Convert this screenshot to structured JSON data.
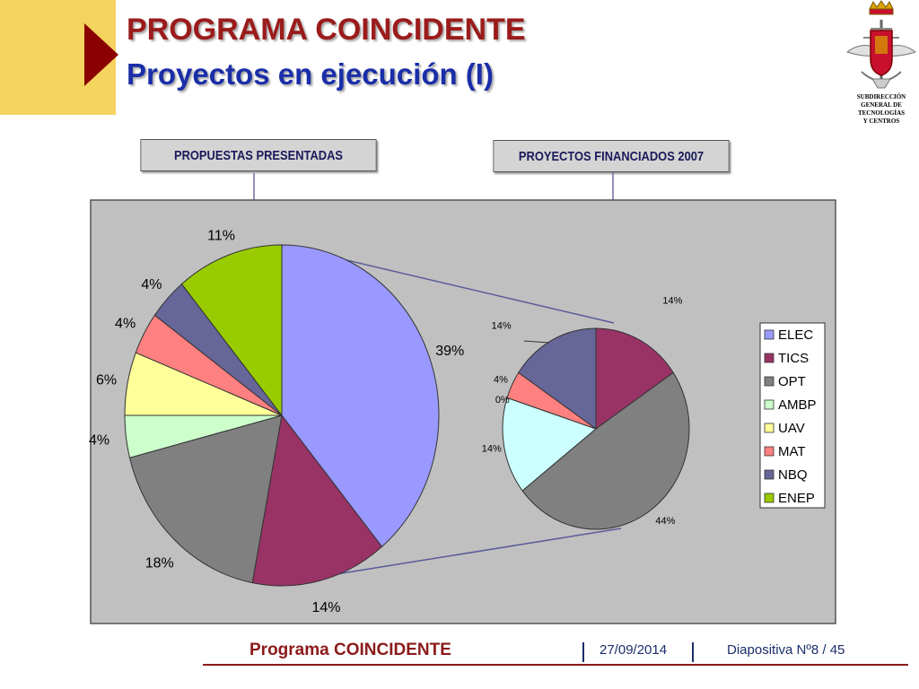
{
  "slide": {
    "title": "PROGRAMA COINCIDENTE",
    "subtitle": "Proyectos en ejecución (I)",
    "logo_text": [
      "SUBDIRECCIÓN",
      "GENERAL DE",
      "TECNOLOGÍAS",
      "Y CENTROS"
    ],
    "box_left": "PROPUESTAS PRESENTADAS",
    "box_right": "PROYECTOS FINANCIADOS 2007",
    "footer": {
      "program": "Programa COINCIDENTE",
      "date": "27/09/2014",
      "slide_number": "Diapositiva Nº8 / 45"
    },
    "colors": {
      "title": "#9b1b1b",
      "subtitle": "#1a2ea8",
      "accent_box": "#f4d35e",
      "accent_arrow": "#8b0000",
      "plot_bg": "#c0c0c0"
    }
  },
  "chart_data": [
    {
      "type": "pie",
      "legend": "right",
      "categories": [
        "ELEC",
        "TICS",
        "OPT",
        "AMBP",
        "UAV",
        "MAT",
        "NBQ",
        "ENEP"
      ],
      "values": [
        39,
        14,
        18,
        4,
        6,
        4,
        4,
        11
      ],
      "labels": [
        "39%",
        "14%",
        "18%",
        "4%",
        "6%",
        "4%",
        "4%",
        "11%"
      ],
      "colors": [
        "#9999ff",
        "#993366",
        "#808080",
        "#ccffcc",
        "#ffff99",
        "#ff8080",
        "#666699",
        "#99cc00"
      ]
    },
    {
      "type": "pie",
      "categories": [
        "TICS",
        "OPT",
        "AMBP",
        "UAV",
        "MAT",
        "NBQ"
      ],
      "values": [
        14,
        44,
        14,
        0,
        4,
        14
      ],
      "labels": [
        "14%",
        "44%",
        "14%",
        "0%",
        "4%",
        "14%"
      ],
      "colors": [
        "#993366",
        "#808080",
        "#ccffff",
        "#ffff99",
        "#ff8080",
        "#666699"
      ]
    }
  ]
}
